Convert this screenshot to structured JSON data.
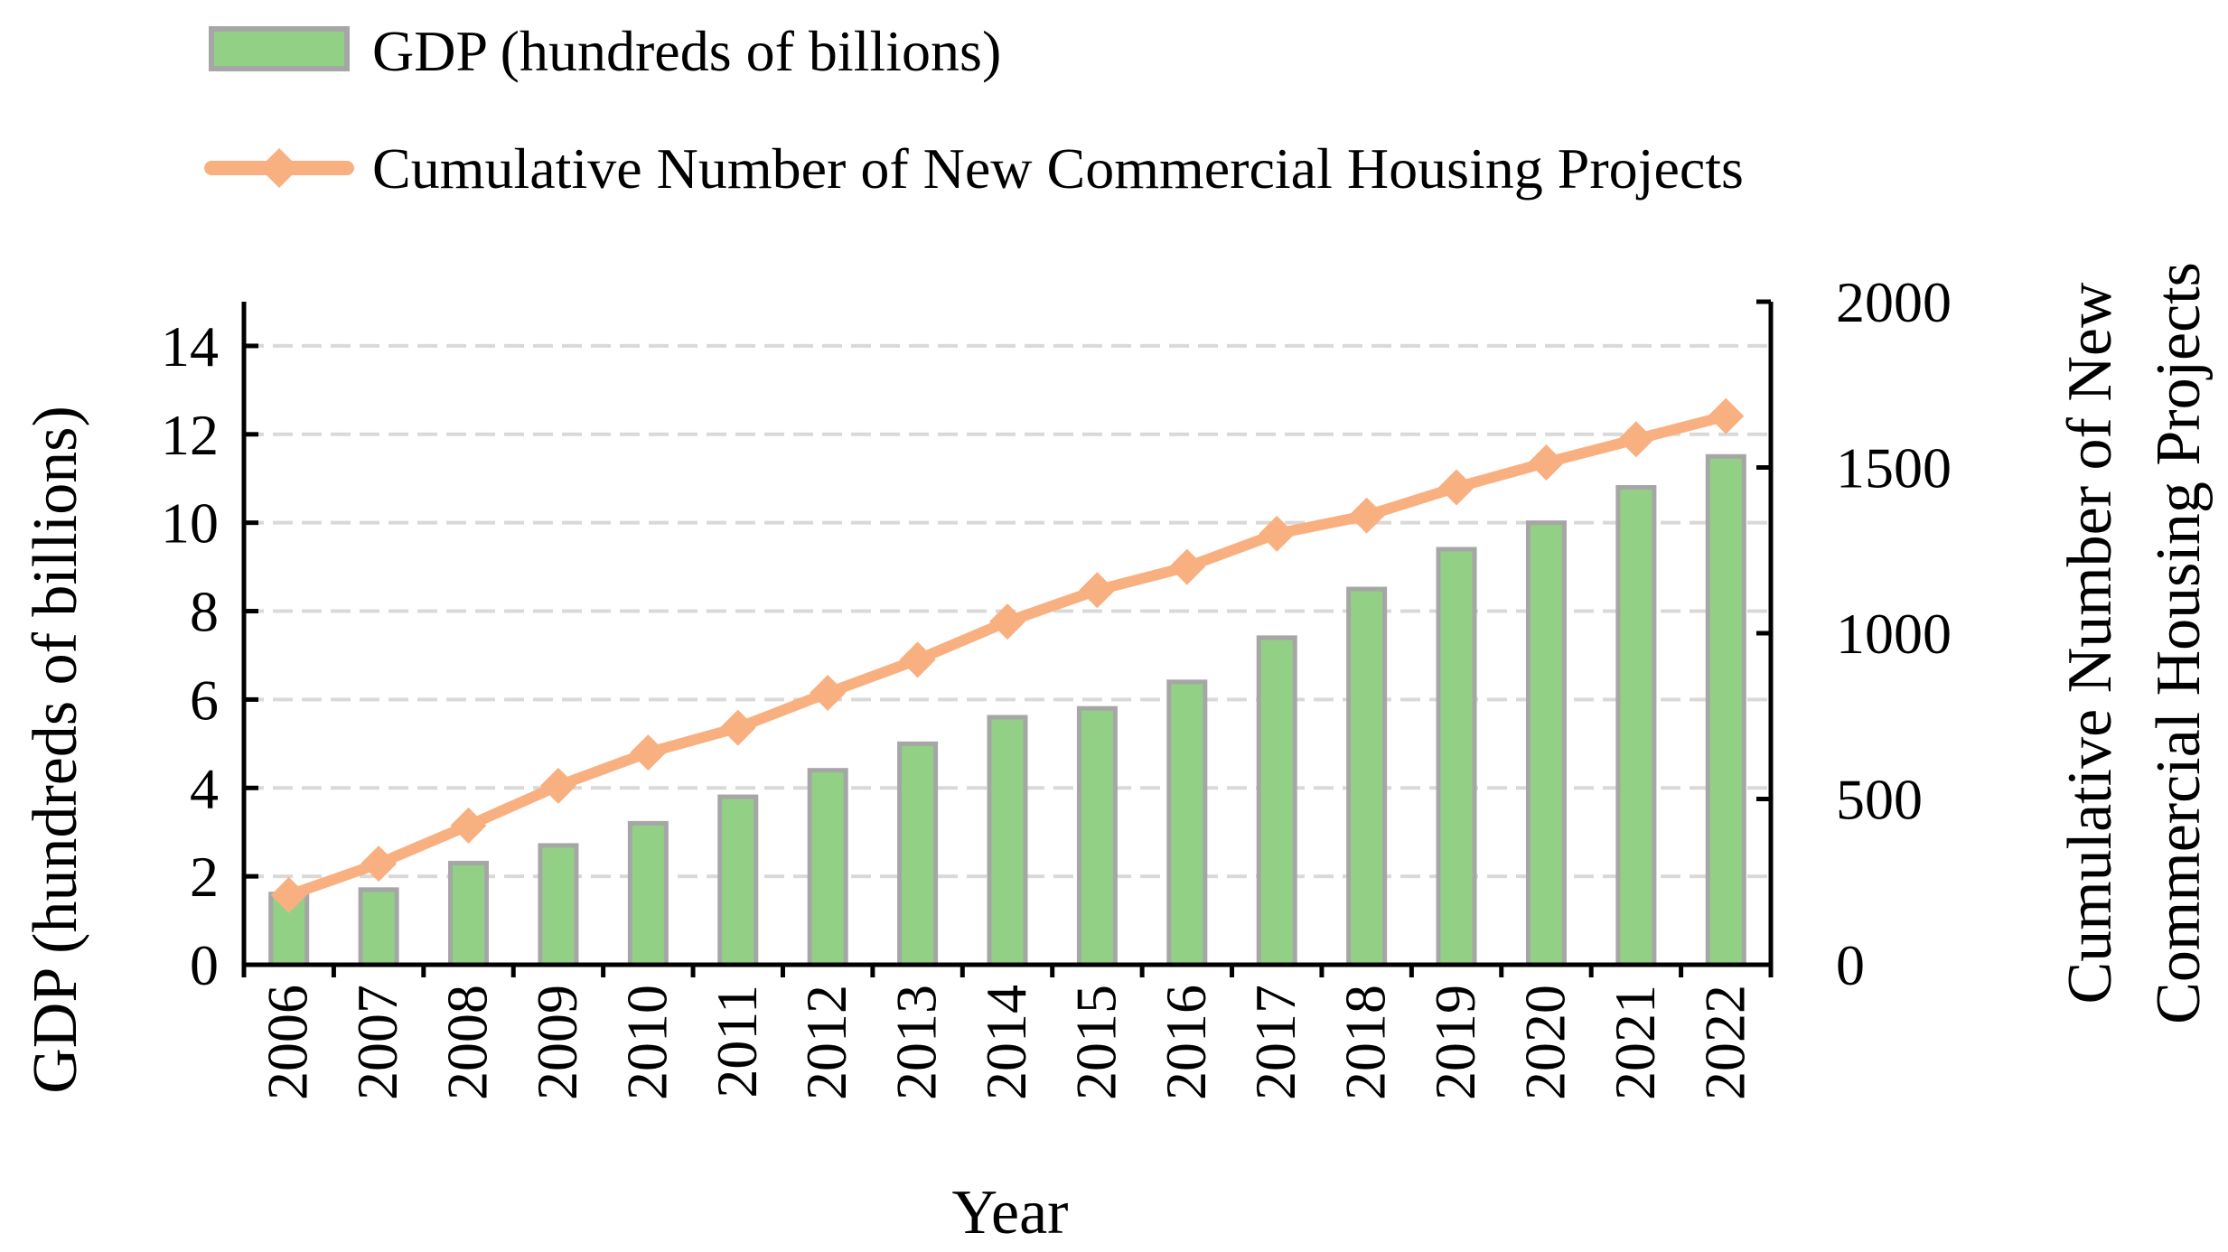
{
  "chart_data": {
    "type": "bar+line",
    "title": "",
    "categories": [
      "2006",
      "2007",
      "2008",
      "2009",
      "2010",
      "2011",
      "2012",
      "2013",
      "2014",
      "2015",
      "2016",
      "2017",
      "2018",
      "2019",
      "2020",
      "2021",
      "2022"
    ],
    "series": [
      {
        "name": "GDP (hundreds of billions)",
        "type": "bar",
        "axis": "left",
        "color": "#92d086",
        "edge_color": "#a6a6a6",
        "values": [
          1.6,
          1.7,
          2.3,
          2.7,
          3.2,
          3.8,
          4.4,
          5.0,
          5.6,
          5.8,
          6.4,
          7.4,
          8.5,
          9.4,
          10.0,
          10.8,
          11.5
        ]
      },
      {
        "name": "Cumulative Number of New Commercial Housing Projects",
        "type": "line",
        "marker": "diamond",
        "axis": "right",
        "color": "#f9b080",
        "values": [
          210,
          305,
          420,
          540,
          640,
          715,
          820,
          920,
          1035,
          1130,
          1200,
          1300,
          1355,
          1440,
          1515,
          1585,
          1655
        ]
      }
    ],
    "xlabel": "Year",
    "ylabel": "GDP (hundreds of billions)",
    "y2label_lines": [
      "Cumulative Number of New",
      "Commercial Housing Projects"
    ],
    "ylim": [
      0,
      15
    ],
    "y2lim": [
      0,
      2000
    ],
    "yticks": [
      0,
      2,
      4,
      6,
      8,
      10,
      12,
      14
    ],
    "y2ticks": [
      0,
      500,
      1000,
      1500,
      2000
    ],
    "grid": true,
    "grid_color": "#d9d9d9",
    "legend_position": "top"
  }
}
